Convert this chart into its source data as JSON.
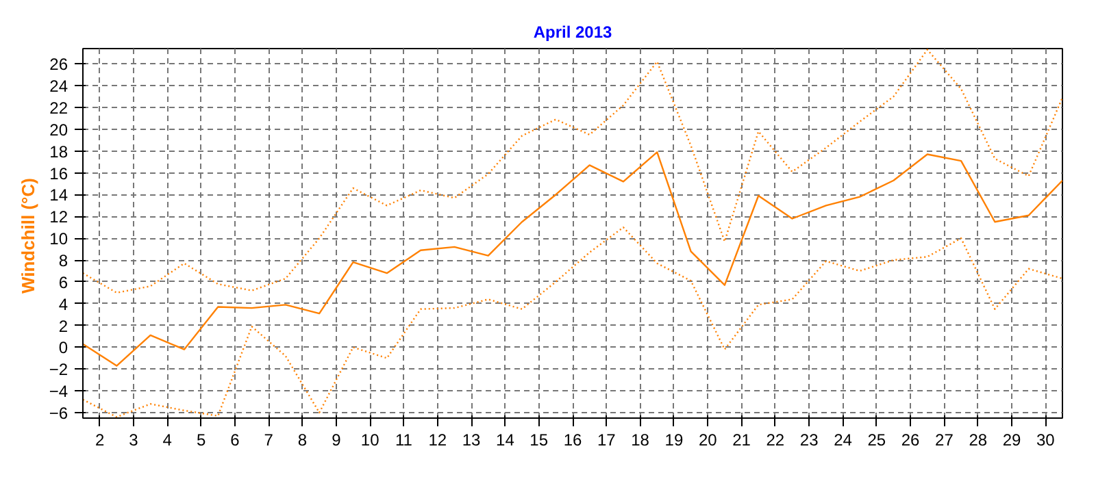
{
  "chart_data": {
    "type": "line",
    "title": "April 2013",
    "ylabel": "Windchill  (°C)",
    "x": [
      1.5,
      2.5,
      3.5,
      4.5,
      5.5,
      6.5,
      7.5,
      8.5,
      9.5,
      10.5,
      11.5,
      12.5,
      13.5,
      14.5,
      15.5,
      16.5,
      17.5,
      18.5,
      19.5,
      20.5,
      21.5,
      22.5,
      23.5,
      24.5,
      25.5,
      26.5,
      27.5,
      28.5,
      29.5,
      30.5
    ],
    "series": [
      {
        "color": "#ff8000",
        "line_style": "dotted",
        "values": [
          6.8,
          5.0,
          5.6,
          7.7,
          5.8,
          5.2,
          6.3,
          10.0,
          14.6,
          13.0,
          14.4,
          13.7,
          15.9,
          19.4,
          20.9,
          19.5,
          22.2,
          26.2,
          18.5,
          9.7,
          19.8,
          16.1,
          18.3,
          20.7,
          23.0,
          27.3,
          23.7,
          17.3,
          15.7,
          22.9
        ]
      },
      {
        "color": "#ff8000",
        "line_style": "solid",
        "values": [
          0.3,
          -1.7,
          1.1,
          -0.2,
          3.7,
          3.6,
          3.9,
          3.1,
          7.8,
          6.8,
          8.9,
          9.2,
          8.4,
          11.5,
          14.0,
          16.7,
          15.2,
          17.9,
          8.8,
          5.7,
          13.9,
          11.8,
          13.0,
          13.8,
          15.3,
          17.7,
          17.1,
          11.5,
          12.1,
          15.3
        ]
      },
      {
        "color": "#ff8000",
        "line_style": "dotted",
        "values": [
          -4.8,
          -6.4,
          -5.2,
          -5.8,
          -6.3,
          1.9,
          -0.8,
          -6.0,
          0.0,
          -1.0,
          3.5,
          3.6,
          4.4,
          3.5,
          6.0,
          8.7,
          11.0,
          7.7,
          6.1,
          -0.2,
          3.9,
          4.4,
          7.9,
          7.0,
          8.0,
          8.3,
          10.0,
          3.5,
          7.2,
          6.3
        ]
      }
    ],
    "xlim": [
      1.5,
      30.5
    ],
    "xticks": [
      2,
      3,
      4,
      5,
      6,
      7,
      8,
      9,
      10,
      11,
      12,
      13,
      14,
      15,
      16,
      17,
      18,
      19,
      20,
      21,
      22,
      23,
      24,
      25,
      26,
      27,
      28,
      29,
      30
    ],
    "ylim": [
      -6.5,
      27.4
    ],
    "yticks": [
      -6,
      -4,
      -2,
      0,
      2,
      4,
      6,
      8,
      10,
      12,
      14,
      16,
      18,
      20,
      22,
      24,
      26
    ],
    "grid": true
  }
}
